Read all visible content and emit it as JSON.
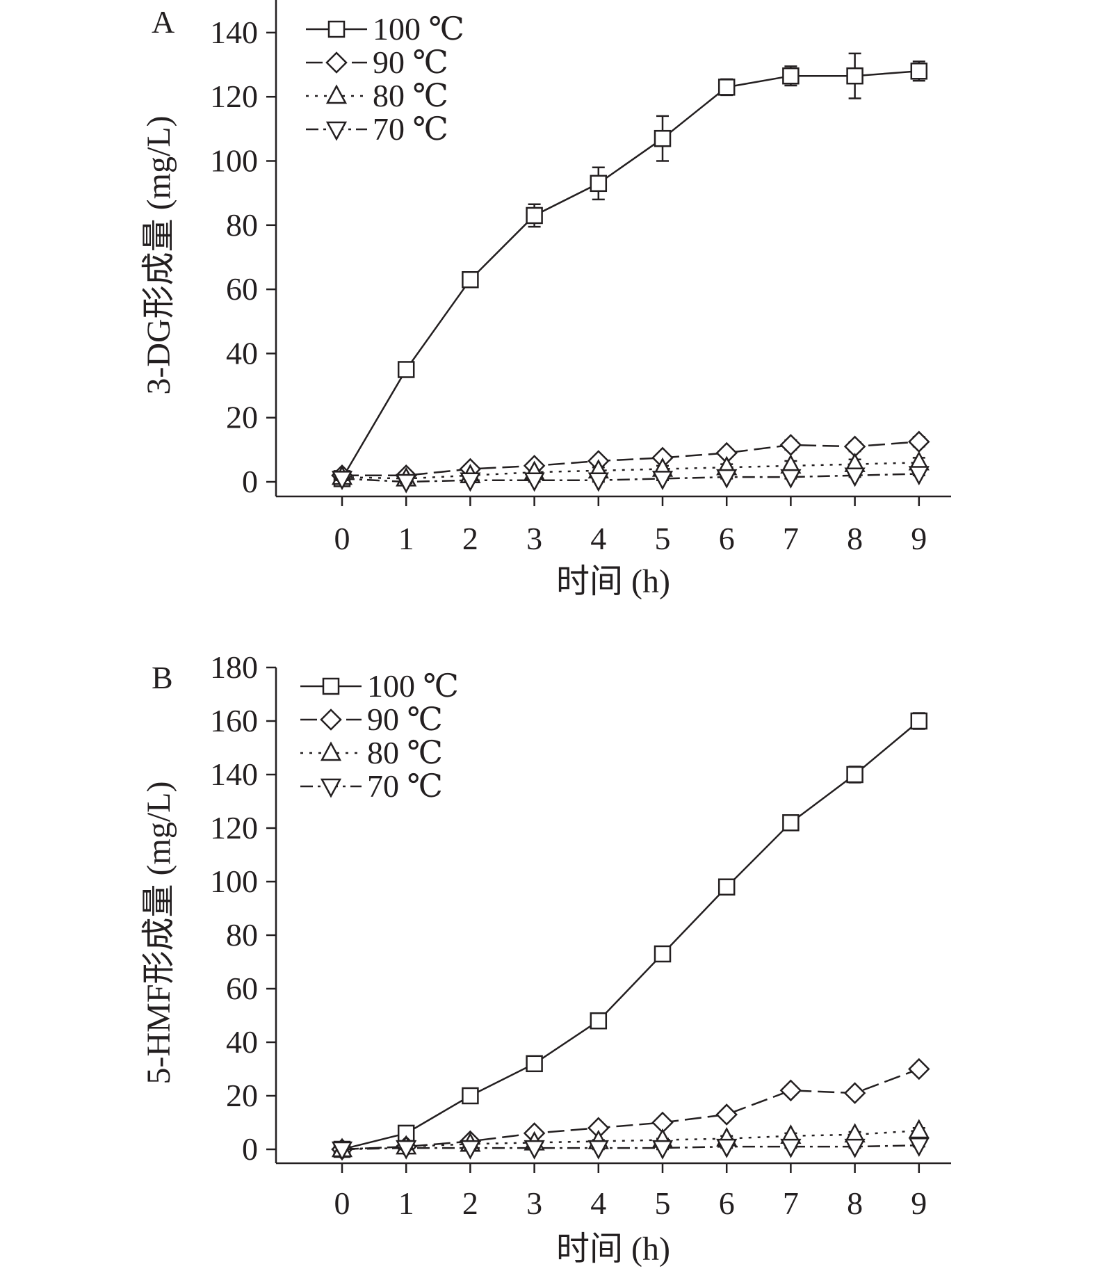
{
  "chart_data": [
    {
      "panel_label": "A",
      "type": "line",
      "xlabel": "时间 (h)",
      "ylabel": "3-DG形成量 (mg/L)",
      "x": [
        0,
        1,
        2,
        3,
        4,
        5,
        6,
        7,
        8,
        9
      ],
      "xticks": [
        "0",
        "1",
        "2",
        "3",
        "4",
        "5",
        "6",
        "7",
        "8",
        "9"
      ],
      "yticks": [
        "0",
        "20",
        "40",
        "60",
        "80",
        "100",
        "120",
        "140"
      ],
      "xlim": [
        -1,
        9.6
      ],
      "ylim": [
        -5,
        150
      ],
      "legend_position": "top-left",
      "series": [
        {
          "name": "100 ℃",
          "marker": "square",
          "dash": "solid",
          "values": [
            1,
            35,
            63,
            83,
            93,
            107,
            123,
            126.5,
            126.5,
            128
          ],
          "errors": [
            0.5,
            2,
            1.5,
            3.5,
            5,
            7,
            2.5,
            3,
            7,
            3
          ]
        },
        {
          "name": "90 ℃",
          "marker": "diamond",
          "dash": "dashed",
          "values": [
            2,
            2,
            4,
            5,
            6.5,
            7.5,
            9,
            11.5,
            11,
            12.5
          ],
          "errors": [
            0.5,
            0.5,
            0.5,
            1,
            1,
            1,
            1,
            1.5,
            1.5,
            1.5
          ]
        },
        {
          "name": "80 ℃",
          "marker": "triangle-up",
          "dash": "dotted",
          "values": [
            1.5,
            1,
            2,
            3,
            3.5,
            4,
            4.5,
            5,
            5.5,
            6
          ],
          "errors": [
            0.5,
            0.5,
            0.5,
            0.5,
            1,
            1,
            1,
            1.5,
            1.5,
            1.5
          ]
        },
        {
          "name": "70 ℃",
          "marker": "triangle-down",
          "dash": "dashdot",
          "values": [
            1,
            0,
            0.5,
            0.5,
            0.5,
            1,
            1.5,
            1.5,
            2,
            2.5
          ],
          "errors": [
            0.5,
            0.5,
            0.5,
            0.5,
            0.5,
            0.5,
            0.5,
            0.5,
            0.5,
            0.5
          ]
        }
      ]
    },
    {
      "panel_label": "B",
      "type": "line",
      "xlabel": "时间 (h)",
      "ylabel": "5-HMF形成量 (mg/L)",
      "x": [
        0,
        1,
        2,
        3,
        4,
        5,
        6,
        7,
        8,
        9
      ],
      "xticks": [
        "0",
        "1",
        "2",
        "3",
        "4",
        "5",
        "6",
        "7",
        "8",
        "9"
      ],
      "yticks": [
        "0",
        "20",
        "40",
        "60",
        "80",
        "100",
        "120",
        "140",
        "160",
        "180"
      ],
      "xlim": [
        -1,
        9.6
      ],
      "ylim": [
        -5,
        180
      ],
      "legend_position": "top-left",
      "series": [
        {
          "name": "100 ℃",
          "marker": "square",
          "dash": "solid",
          "values": [
            0,
            6,
            20,
            32,
            48,
            73,
            98,
            122,
            140,
            160
          ],
          "errors": [
            0.5,
            0.5,
            1,
            1,
            1.5,
            1,
            1,
            1,
            3,
            3
          ]
        },
        {
          "name": "90 ℃",
          "marker": "diamond",
          "dash": "dashed",
          "values": [
            0,
            1,
            3,
            6,
            8,
            10,
            13,
            22,
            21,
            30
          ],
          "errors": [
            0.5,
            0.5,
            0.5,
            1,
            1,
            1,
            1,
            1.5,
            1.5,
            1.5
          ]
        },
        {
          "name": "80 ℃",
          "marker": "triangle-up",
          "dash": "dotted",
          "values": [
            0,
            1,
            2,
            2.5,
            3,
            3.5,
            4,
            5,
            5.5,
            7
          ],
          "errors": [
            0.5,
            0.5,
            0.5,
            0.5,
            0.5,
            0.5,
            1,
            1,
            1,
            1
          ]
        },
        {
          "name": "70 ℃",
          "marker": "triangle-down",
          "dash": "dashdot",
          "values": [
            0,
            0.5,
            0.5,
            0.5,
            0.5,
            0.5,
            1,
            1,
            1,
            1.5
          ],
          "errors": [
            0.5,
            0.5,
            0.5,
            0.5,
            0.5,
            0.5,
            0.5,
            0.5,
            0.5,
            0.5
          ]
        }
      ]
    }
  ]
}
